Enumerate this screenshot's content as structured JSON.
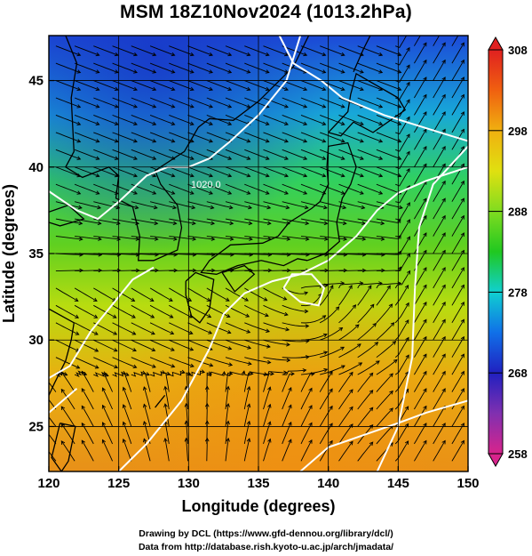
{
  "title": "MSM 18Z10Nov2024 (1013.2hPa)",
  "map": {
    "projection": "equirectangular",
    "lon_range": [
      120,
      150
    ],
    "lat_range": [
      22.4,
      47.6
    ],
    "x_ticks": [
      "120",
      "125",
      "130",
      "135",
      "140",
      "145",
      "150"
    ],
    "y_ticks": [
      "25",
      "30",
      "35",
      "40",
      "45"
    ],
    "xlabel": "Longitude (degrees)",
    "ylabel": "Latitude  (degrees)",
    "grid": true,
    "field": "temperature (K) shaded, streamlines, white pressure contours",
    "contour_labels": [
      "1020.0"
    ]
  },
  "colorbar": {
    "min": 258,
    "max": 308,
    "labels": [
      "308",
      "298",
      "288",
      "278",
      "268",
      "258"
    ],
    "colors": [
      "#d8248c",
      "#2020c0",
      "#1080f0",
      "#10d0d0",
      "#20c820",
      "#90e020",
      "#e0e010",
      "#f0a010",
      "#f04010"
    ]
  },
  "credits": {
    "line1": "Drawing by DCL (https://www.gfd-dennou.org/library/dcl/)",
    "line2": "Data from http://database.rish.kyoto-u.ac.jp/arch/jmadata/"
  }
}
